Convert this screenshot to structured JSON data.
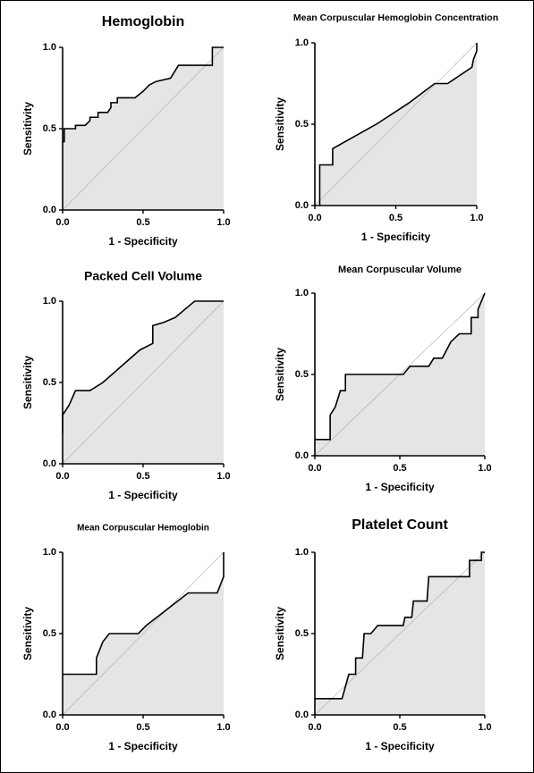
{
  "chart_data": [
    {
      "type": "line",
      "title": "Hemoglobin",
      "x_label": "1 - Specificity",
      "y_label": "Sensitivity",
      "xlim": [
        0,
        1
      ],
      "ylim": [
        0,
        1
      ],
      "xticks": [
        {
          "value": 0,
          "label": "0.0"
        },
        {
          "value": 0.5,
          "label": "0.5"
        },
        {
          "value": 1,
          "label": "1.0"
        }
      ],
      "yticks": [
        {
          "value": 0,
          "label": "0.0"
        },
        {
          "value": 0.5,
          "label": "0.5"
        },
        {
          "value": 1,
          "label": "1.0"
        }
      ],
      "color": "#000000",
      "fill": "#e5e5e5",
      "x": [
        0,
        0.01,
        0.01,
        0.08,
        0.08,
        0.14,
        0.17,
        0.17,
        0.22,
        0.22,
        0.28,
        0.3,
        0.3,
        0.34,
        0.34,
        0.45,
        0.5,
        0.54,
        0.58,
        0.67,
        0.72,
        0.93,
        0.93,
        1
      ],
      "y": [
        0.42,
        0.42,
        0.5,
        0.5,
        0.52,
        0.52,
        0.55,
        0.57,
        0.57,
        0.6,
        0.6,
        0.63,
        0.66,
        0.66,
        0.69,
        0.69,
        0.73,
        0.77,
        0.79,
        0.81,
        0.89,
        0.89,
        1,
        1
      ]
    },
    {
      "type": "line",
      "title": "Mean Corpuscular Hemoglobin Concentration",
      "x_label": "1 - Specificity",
      "y_label": "Sensitivity",
      "xlim": [
        0,
        1
      ],
      "ylim": [
        0,
        1
      ],
      "xticks": [
        {
          "value": 0,
          "label": "0.0"
        },
        {
          "value": 0.5,
          "label": "0.5"
        },
        {
          "value": 1,
          "label": "1.0"
        }
      ],
      "yticks": [
        {
          "value": 0,
          "label": "0.0"
        },
        {
          "value": 0.5,
          "label": "0.5"
        },
        {
          "value": 1,
          "label": "1.0"
        }
      ],
      "color": "#000000",
      "fill": "#e5e5e5",
      "x": [
        0.03,
        0.03,
        0.11,
        0.11,
        0.2,
        0.38,
        0.58,
        0.74,
        0.82,
        0.97,
        0.98,
        1,
        1
      ],
      "y": [
        0,
        0.25,
        0.25,
        0.35,
        0.4,
        0.5,
        0.63,
        0.75,
        0.75,
        0.85,
        0.9,
        0.95,
        1
      ]
    },
    {
      "type": "line",
      "title": "Packed Cell Volume",
      "x_label": "1 - Specificity",
      "y_label": "Sensitivity",
      "xlim": [
        0,
        1
      ],
      "ylim": [
        0,
        1
      ],
      "xticks": [
        {
          "value": 0,
          "label": "0.0"
        },
        {
          "value": 0.5,
          "label": "0.5"
        },
        {
          "value": 1,
          "label": "1.0"
        }
      ],
      "yticks": [
        {
          "value": 0,
          "label": "0.0"
        },
        {
          "value": 0.5,
          "label": "0.5"
        },
        {
          "value": 1,
          "label": "1.0"
        }
      ],
      "color": "#000000",
      "fill": "#e5e5e5",
      "x": [
        0,
        0,
        0.04,
        0.08,
        0.17,
        0.25,
        0.48,
        0.56,
        0.56,
        0.63,
        0.7,
        0.82,
        1
      ],
      "y": [
        0.19,
        0.3,
        0.36,
        0.45,
        0.45,
        0.5,
        0.7,
        0.74,
        0.85,
        0.87,
        0.9,
        1,
        1
      ]
    },
    {
      "type": "line",
      "title": "Mean Corpuscular Volume",
      "x_label": "1 - Specificity",
      "y_label": "Sensitivity",
      "xlim": [
        0,
        1
      ],
      "ylim": [
        0,
        1
      ],
      "xticks": [
        {
          "value": 0,
          "label": "0.0"
        },
        {
          "value": 0.5,
          "label": "0.5"
        },
        {
          "value": 1,
          "label": "1.0"
        }
      ],
      "yticks": [
        {
          "value": 0,
          "label": "0.0"
        },
        {
          "value": 0.5,
          "label": "0.5"
        },
        {
          "value": 1,
          "label": "1.0"
        }
      ],
      "color": "#000000",
      "fill": "#e5e5e5",
      "x": [
        0,
        0.09,
        0.09,
        0.12,
        0.15,
        0.18,
        0.18,
        0.52,
        0.56,
        0.67,
        0.7,
        0.75,
        0.8,
        0.85,
        0.92,
        0.92,
        0.96,
        0.96,
        0.98,
        1
      ],
      "y": [
        0.1,
        0.1,
        0.25,
        0.3,
        0.4,
        0.4,
        0.5,
        0.5,
        0.55,
        0.55,
        0.6,
        0.6,
        0.7,
        0.75,
        0.75,
        0.85,
        0.85,
        0.9,
        0.95,
        1
      ]
    },
    {
      "type": "line",
      "title": "Mean Corpuscular Hemoglobin",
      "x_label": "1 - Specificity",
      "y_label": "Sensitivity",
      "xlim": [
        0,
        1
      ],
      "ylim": [
        0,
        1
      ],
      "xticks": [
        {
          "value": 0,
          "label": "0.0"
        },
        {
          "value": 0.5,
          "label": "0.5"
        },
        {
          "value": 1,
          "label": "1.0"
        }
      ],
      "yticks": [
        {
          "value": 0,
          "label": "0.0"
        },
        {
          "value": 0.5,
          "label": "0.5"
        },
        {
          "value": 1,
          "label": "1.0"
        }
      ],
      "color": "#000000",
      "fill": "#e5e5e5",
      "x": [
        0,
        0.21,
        0.21,
        0.25,
        0.29,
        0.47,
        0.52,
        0.78,
        0.96,
        1,
        1
      ],
      "y": [
        0.25,
        0.25,
        0.35,
        0.45,
        0.5,
        0.5,
        0.55,
        0.75,
        0.75,
        0.85,
        1
      ]
    },
    {
      "type": "line",
      "title": "Platelet Count",
      "x_label": "1 - Specificity",
      "y_label": "Sensitivity",
      "xlim": [
        0,
        1
      ],
      "ylim": [
        0,
        1
      ],
      "xticks": [
        {
          "value": 0,
          "label": "0.0"
        },
        {
          "value": 0.5,
          "label": "0.5"
        },
        {
          "value": 1,
          "label": "1.0"
        }
      ],
      "yticks": [
        {
          "value": 0,
          "label": "0.0"
        },
        {
          "value": 0.5,
          "label": "0.5"
        },
        {
          "value": 1,
          "label": "1.0"
        }
      ],
      "color": "#000000",
      "fill": "#e5e5e5",
      "x": [
        0,
        0.16,
        0.2,
        0.24,
        0.24,
        0.28,
        0.29,
        0.33,
        0.37,
        0.52,
        0.53,
        0.57,
        0.58,
        0.66,
        0.67,
        0.91,
        0.91,
        0.98,
        0.98,
        1
      ],
      "y": [
        0.1,
        0.1,
        0.25,
        0.25,
        0.35,
        0.35,
        0.5,
        0.5,
        0.55,
        0.55,
        0.6,
        0.6,
        0.7,
        0.7,
        0.85,
        0.85,
        0.95,
        0.95,
        1,
        1
      ]
    }
  ]
}
